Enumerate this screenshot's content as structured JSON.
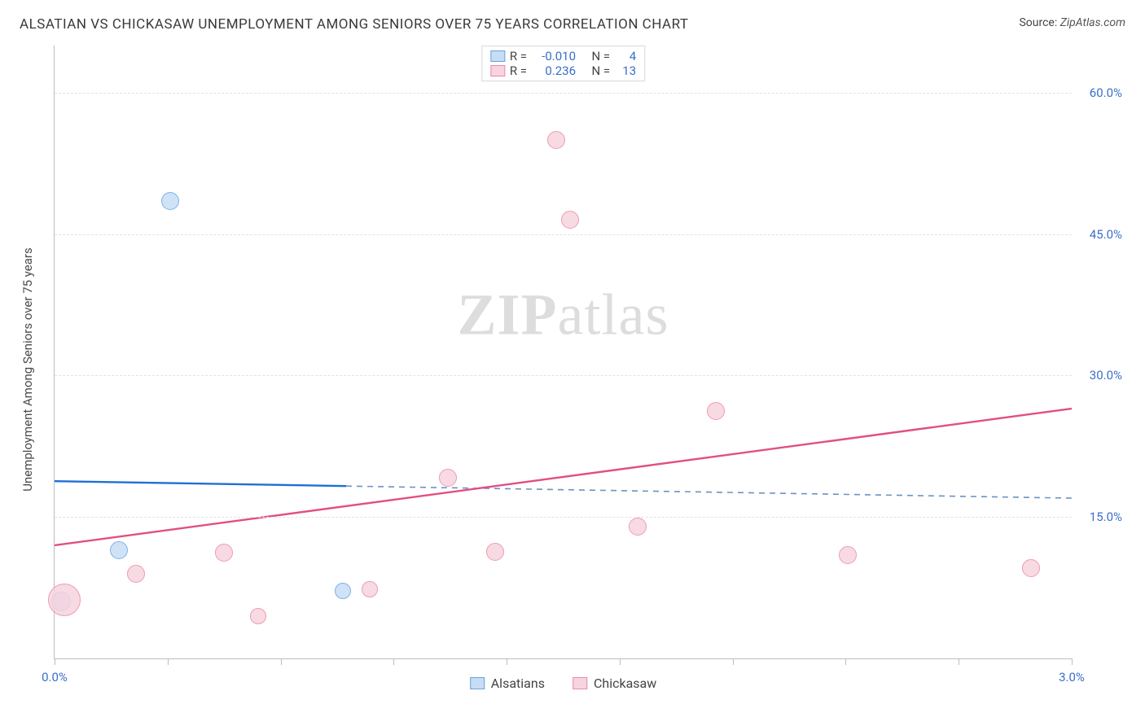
{
  "header": {
    "title": "ALSATIAN VS CHICKASAW UNEMPLOYMENT AMONG SENIORS OVER 75 YEARS CORRELATION CHART",
    "source_label": "Source:",
    "source_value": "ZipAtlas.com"
  },
  "watermark": {
    "part1": "ZIP",
    "part2": "atlas"
  },
  "chart": {
    "type": "scatter",
    "background_color": "#ffffff",
    "grid_color": "#e3e3e3",
    "axis_color": "#bdbdbd",
    "y_axis_title": "Unemployment Among Seniors over 75 years",
    "y_axis_title_fontsize": 15,
    "xlim": [
      0.0,
      3.0
    ],
    "ylim": [
      0.0,
      65.0
    ],
    "x_ticks": [
      0.0,
      0.333,
      0.667,
      1.0,
      1.333,
      1.667,
      2.0,
      2.333,
      2.667,
      3.0
    ],
    "x_tick_labels": {
      "0": "0.0%",
      "9": "3.0%"
    },
    "y_gridlines": [
      15.0,
      30.0,
      45.0,
      60.0
    ],
    "y_tick_labels": [
      "15.0%",
      "30.0%",
      "45.0%",
      "60.0%"
    ],
    "tick_label_color": "#3b6fc9",
    "tick_label_fontsize": 15,
    "series": [
      {
        "key": "alsatians",
        "label": "Alsatians",
        "fill": "#c7ddf5",
        "stroke": "#6aa3e0",
        "trend_solid_color": "#1f6fd6",
        "trend_dash_color": "#6a93c2",
        "R": "-0.010",
        "N": "4",
        "trend": {
          "x1": 0.0,
          "y1": 18.8,
          "x2": 3.0,
          "y2": 17.0,
          "solid_until_x": 0.86
        },
        "points": [
          {
            "x": 0.02,
            "y": 6.0,
            "r": 12
          },
          {
            "x": 0.19,
            "y": 11.5,
            "r": 11
          },
          {
            "x": 0.34,
            "y": 48.5,
            "r": 11
          },
          {
            "x": 0.85,
            "y": 7.2,
            "r": 10
          }
        ]
      },
      {
        "key": "chickasaw",
        "label": "Chickasaw",
        "fill": "#f7d4de",
        "stroke": "#e98ba8",
        "trend_solid_color": "#e14f82",
        "R": "0.236",
        "N": "13",
        "trend": {
          "x1": 0.0,
          "y1": 12.0,
          "x2": 3.0,
          "y2": 26.5,
          "solid_until_x": 3.0
        },
        "points": [
          {
            "x": 0.03,
            "y": 6.2,
            "r": 20
          },
          {
            "x": 0.24,
            "y": 9.0,
            "r": 11
          },
          {
            "x": 0.5,
            "y": 11.2,
            "r": 11
          },
          {
            "x": 0.6,
            "y": 4.5,
            "r": 10
          },
          {
            "x": 0.93,
            "y": 7.3,
            "r": 10
          },
          {
            "x": 1.16,
            "y": 19.2,
            "r": 11
          },
          {
            "x": 1.3,
            "y": 11.3,
            "r": 11
          },
          {
            "x": 1.48,
            "y": 55.0,
            "r": 11
          },
          {
            "x": 1.52,
            "y": 46.5,
            "r": 11
          },
          {
            "x": 1.72,
            "y": 14.0,
            "r": 11
          },
          {
            "x": 1.95,
            "y": 26.2,
            "r": 11
          },
          {
            "x": 2.34,
            "y": 11.0,
            "r": 11
          },
          {
            "x": 2.88,
            "y": 9.6,
            "r": 11
          }
        ]
      }
    ],
    "legend_top": {
      "R_label": "R =",
      "N_label": "N ="
    }
  }
}
